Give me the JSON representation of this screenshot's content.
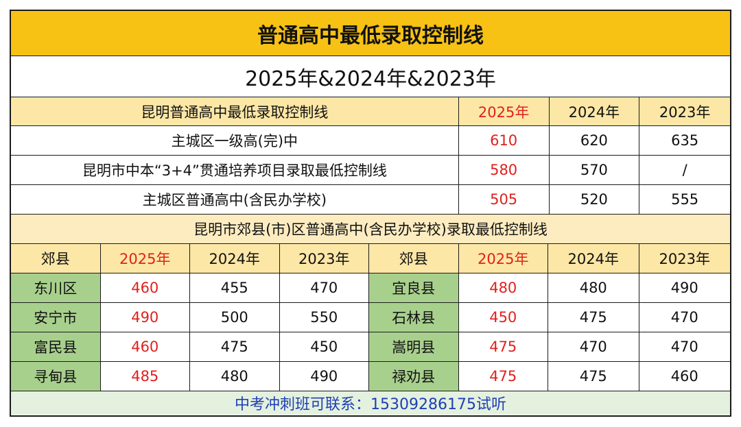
{
  "title": "普通高中最低录取控制线",
  "years_line": "2025年&2024年&2023年",
  "main_table": {
    "header": [
      "昆明普通高中最低录取控制线",
      "2025年",
      "2024年",
      "2023年"
    ],
    "rows": [
      [
        "主城区一级高(完)中",
        "610",
        "620",
        "635"
      ],
      [
        "昆明市中本“3+4”贯通培养项目录取最低控制线",
        "580",
        "570",
        "/"
      ],
      [
        "主城区普通高中(含民办学校)",
        "505",
        "520",
        "555"
      ]
    ]
  },
  "county_table": {
    "subtitle": "昆明市郊县(市)区普通高中(含民办学校)录取最低控制线",
    "header": [
      "郊县",
      "2025年",
      "2024年",
      "2023年",
      "郊县",
      "2025年",
      "2024年",
      "2023年"
    ],
    "rows": [
      [
        "东川区",
        "460",
        "455",
        "470",
        "宜良县",
        "480",
        "480",
        "490"
      ],
      [
        "安宁市",
        "490",
        "500",
        "550",
        "石林县",
        "450",
        "475",
        "470"
      ],
      [
        "富民县",
        "460",
        "475",
        "450",
        "嵩明县",
        "475",
        "470",
        "470"
      ],
      [
        "寻甸县",
        "485",
        "480",
        "490",
        "禄劝县",
        "475",
        "475",
        "460"
      ]
    ]
  },
  "footer": "中考冲刺班可联系：15309286175试听",
  "colors": {
    "title_bg": "#f7c213",
    "header_bg": "#fde7a6",
    "county_bg": "#a8d08d",
    "highlight_2025": "#e0211d",
    "footer_text": "#1f3fb5",
    "footer_bg": "#e4f1df"
  }
}
